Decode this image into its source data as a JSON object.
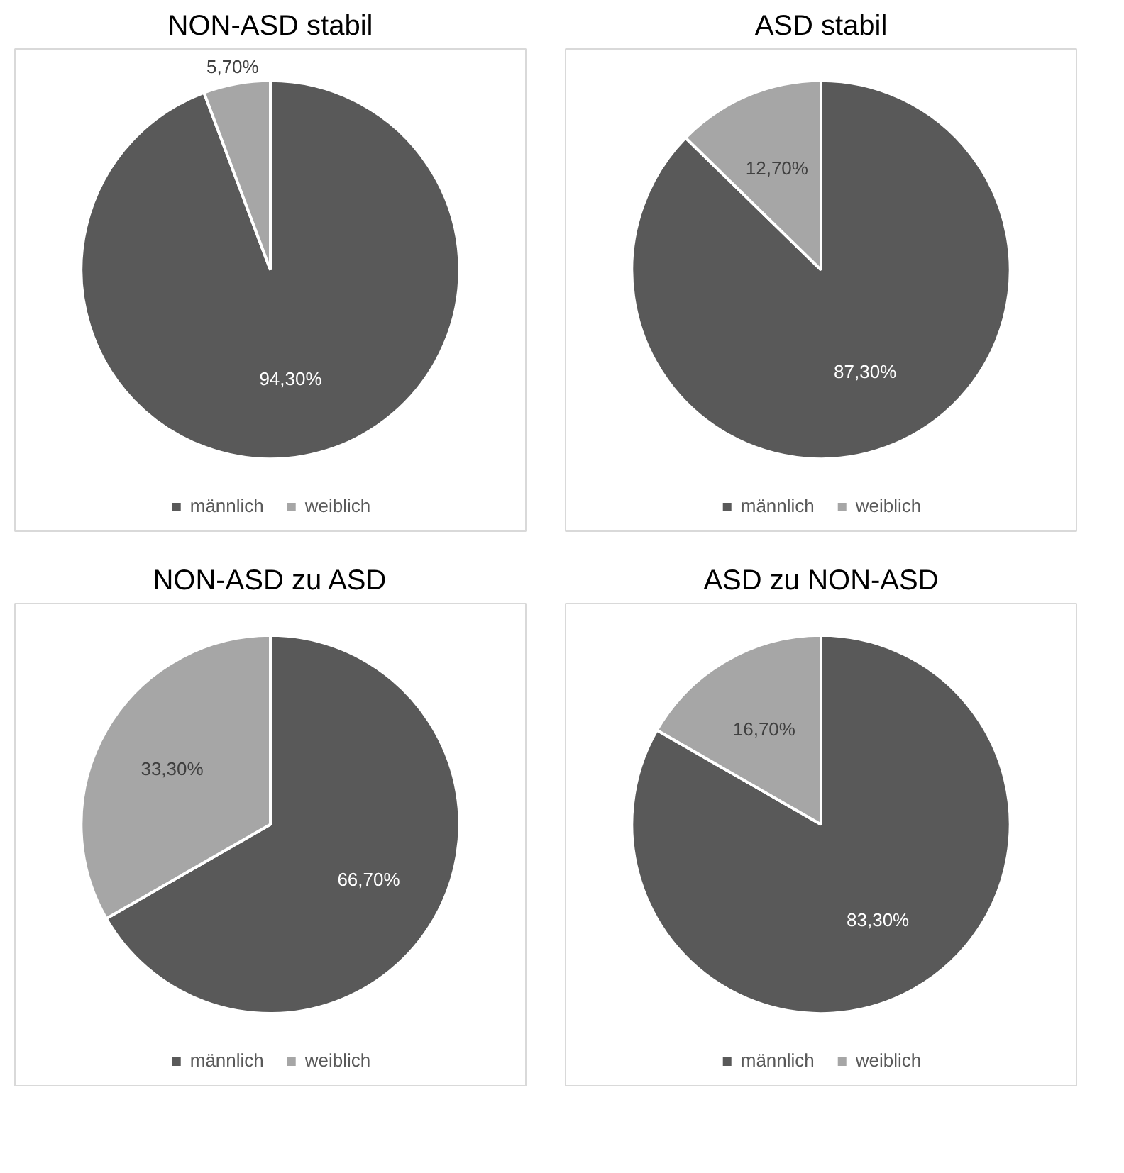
{
  "chart_data": [
    {
      "type": "pie",
      "title": "NON-ASD stabil",
      "categories": [
        "männlich",
        "weiblich"
      ],
      "values": [
        94.3,
        5.7
      ],
      "colors": [
        "#595959",
        "#a6a6a6"
      ],
      "value_labels": [
        "94,30%",
        "5,70%"
      ],
      "legend": "bottom"
    },
    {
      "type": "pie",
      "title": "ASD stabil",
      "categories": [
        "männlich",
        "weiblich"
      ],
      "values": [
        87.3,
        12.7
      ],
      "colors": [
        "#595959",
        "#a6a6a6"
      ],
      "value_labels": [
        "87,30%",
        "12,70%"
      ],
      "legend": "bottom"
    },
    {
      "type": "pie",
      "title": "NON-ASD zu ASD",
      "categories": [
        "männlich",
        "weiblich"
      ],
      "values": [
        66.7,
        33.3
      ],
      "colors": [
        "#595959",
        "#a6a6a6"
      ],
      "value_labels": [
        "66,70%",
        "33,30%"
      ],
      "legend": "bottom"
    },
    {
      "type": "pie",
      "title": "ASD zu NON-ASD",
      "categories": [
        "männlich",
        "weiblich"
      ],
      "values": [
        83.3,
        16.7
      ],
      "colors": [
        "#595959",
        "#a6a6a6"
      ],
      "value_labels": [
        "83,30%",
        "16,70%"
      ],
      "legend": "bottom"
    }
  ]
}
